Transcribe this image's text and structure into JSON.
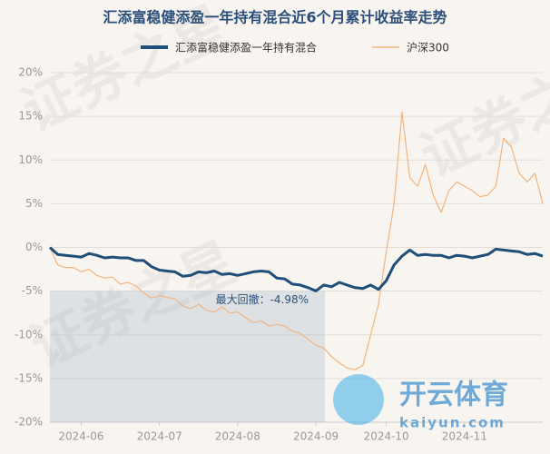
{
  "chart_data": {
    "type": "line",
    "title": "汇添富稳健添盈一年持有混合近6个月累计收益率走势",
    "categories": [
      null,
      null,
      null,
      null,
      "2024-06",
      null,
      null,
      null,
      null,
      null,
      null,
      null,
      null,
      null,
      "2024-07",
      null,
      null,
      null,
      null,
      null,
      null,
      null,
      null,
      null,
      "2024-08",
      null,
      null,
      null,
      null,
      null,
      null,
      null,
      null,
      null,
      "2024-09",
      null,
      null,
      null,
      null,
      null,
      null,
      null,
      null,
      "2024-10",
      null,
      null,
      null,
      null,
      null,
      null,
      null,
      null,
      null,
      "2024-11",
      null,
      null,
      null,
      null,
      null,
      null,
      null,
      null,
      null,
      null
    ],
    "series": [
      {
        "name": "汇添富稳健添盈一年持有混合",
        "color": "#1f4e79",
        "values": [
          0,
          -0.8,
          -0.9,
          -1.0,
          -1.1,
          -0.7,
          -0.9,
          -1.2,
          -1.1,
          -1.2,
          -1.2,
          -1.5,
          -1.5,
          -2.2,
          -2.6,
          -2.7,
          -2.8,
          -3.3,
          -3.2,
          -2.8,
          -2.9,
          -2.7,
          -3.1,
          -3.0,
          -3.2,
          -3.0,
          -2.8,
          -2.7,
          -2.8,
          -3.5,
          -3.6,
          -4.2,
          -4.3,
          -4.6,
          -4.98,
          -4.3,
          -4.5,
          -4.0,
          -4.3,
          -4.6,
          -4.7,
          -4.3,
          -4.8,
          -3.8,
          -2.0,
          -1.0,
          -0.3,
          -0.9,
          -0.8,
          -0.9,
          -0.9,
          -1.2,
          -0.9,
          -1.0,
          -1.2,
          -1.0,
          -0.8,
          -0.2,
          -0.3,
          -0.4,
          -0.5,
          -0.8,
          -0.7,
          -1.0
        ]
      },
      {
        "name": "沪深300",
        "color": "#f2b47e",
        "values": [
          0,
          -2.0,
          -2.3,
          -2.3,
          -2.8,
          -2.5,
          -3.2,
          -3.5,
          -3.4,
          -4.2,
          -4.0,
          -4.4,
          -5.2,
          -5.8,
          -5.5,
          -5.7,
          -5.9,
          -6.7,
          -7.0,
          -6.5,
          -7.2,
          -7.4,
          -6.8,
          -7.5,
          -7.4,
          -8.0,
          -8.6,
          -8.4,
          -9.0,
          -8.8,
          -9.0,
          -9.6,
          -9.8,
          -10.5,
          -11.2,
          -11.5,
          -12.5,
          -13.2,
          -13.8,
          -14.0,
          -13.5,
          -10.0,
          -6.5,
          -0.5,
          5.0,
          15.5,
          8.0,
          7.0,
          9.5,
          6.0,
          4.0,
          6.5,
          7.5,
          7.0,
          6.5,
          5.8,
          6.0,
          7.0,
          12.5,
          11.5,
          8.5,
          7.5,
          8.5,
          5.0
        ]
      }
    ],
    "ylim": [
      -20,
      20
    ],
    "yticks": [
      {
        "value": -20,
        "label": "-20%"
      },
      {
        "value": -15,
        "label": "-15%"
      },
      {
        "value": -10,
        "label": "-10%"
      },
      {
        "value": -5,
        "label": "-5%"
      },
      {
        "value": 0,
        "label": "0%"
      },
      {
        "value": 5,
        "label": "5%"
      },
      {
        "value": 10,
        "label": "10%"
      },
      {
        "value": 15,
        "label": "15%"
      },
      {
        "value": 20,
        "label": "20%"
      }
    ],
    "grid": true,
    "annotation": "最大回撤：-4.98%",
    "watermarks": [
      "证券之星",
      "开云体育",
      "kaiyun.com"
    ]
  }
}
